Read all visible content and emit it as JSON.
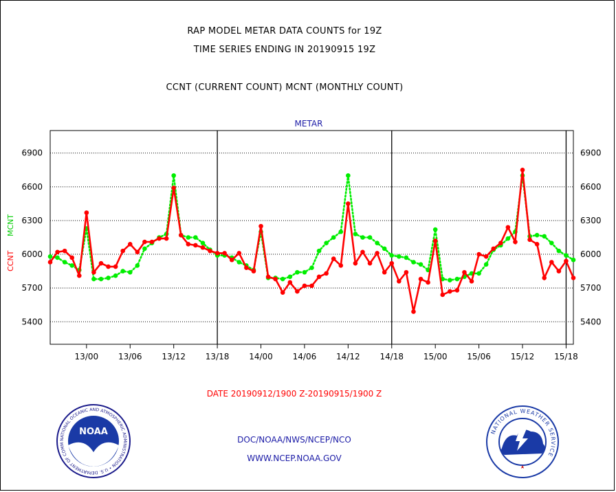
{
  "header": {
    "title_line1": "RAP MODEL METAR DATA COUNTS for 19Z",
    "title_line2": "TIME SERIES ENDING IN 20190915 19Z",
    "title_line3": "CCNT (CURRENT COUNT) MCNT (MONTHLY COUNT)"
  },
  "footer": {
    "date_range": "DATE 20190912/1900 Z-20190915/1900 Z",
    "credit_line1": "DOC/NOAA/NWS/NCEP/NCO",
    "credit_line2": "WWW.NCEP.NOAA.GOV"
  },
  "logos": {
    "noaa_text": "NOAA",
    "noaa_ring_text": "NATIONAL OCEANIC AND ATMOSPHERIC ADMINISTRATION • U.S. DEPARTMENT OF COMMERCE •",
    "nws_ring_text": "NATIONAL WEATHER SERVICE"
  },
  "chart_data": {
    "type": "line",
    "title": "METAR",
    "ylabel_ccnt": "CCNT",
    "ylabel_mcnt": "MCNT",
    "ylim": [
      5200,
      7100
    ],
    "y_ticks": [
      5400,
      5700,
      6000,
      6300,
      6600,
      6900
    ],
    "y_tick_labels": [
      "5400",
      "5700",
      "6000",
      "6300",
      "6600",
      "6900"
    ],
    "x_range_hours": [
      19,
      91
    ],
    "x_ticks": [
      {
        "hour": 24,
        "label": "13/00"
      },
      {
        "hour": 30,
        "label": "13/06"
      },
      {
        "hour": 36,
        "label": "13/12"
      },
      {
        "hour": 42,
        "label": "13/18"
      },
      {
        "hour": 48,
        "label": "14/00"
      },
      {
        "hour": 54,
        "label": "14/06"
      },
      {
        "hour": 60,
        "label": "14/12"
      },
      {
        "hour": 66,
        "label": "14/18"
      },
      {
        "hour": 72,
        "label": "15/00"
      },
      {
        "hour": 78,
        "label": "15/06"
      },
      {
        "hour": 84,
        "label": "15/12"
      },
      {
        "hour": 90,
        "label": "15/18"
      }
    ],
    "day_dividers_hours": [
      42,
      66,
      90
    ],
    "grid": true,
    "series": [
      {
        "name": "CCNT",
        "color": "#ff0000",
        "style": "solid",
        "x": [
          19,
          20,
          21,
          22,
          23,
          24,
          25,
          26,
          27,
          28,
          29,
          30,
          31,
          32,
          33,
          34,
          35,
          36,
          37,
          38,
          39,
          40,
          41,
          42,
          43,
          44,
          45,
          46,
          47,
          48,
          49,
          50,
          51,
          52,
          53,
          54,
          55,
          56,
          57,
          58,
          59,
          60,
          61,
          62,
          63,
          64,
          65,
          66,
          67,
          68,
          69,
          70,
          71,
          72,
          73,
          74,
          75,
          76,
          77,
          78,
          79,
          80,
          81,
          82,
          83,
          84,
          85,
          86,
          87,
          88,
          89,
          90,
          91
        ],
        "values": [
          5930,
          6020,
          6030,
          5970,
          5810,
          6370,
          5840,
          5920,
          5890,
          5890,
          6030,
          6090,
          6020,
          6110,
          6110,
          6140,
          6140,
          6590,
          6170,
          6090,
          6080,
          6060,
          6030,
          6010,
          6010,
          5950,
          6010,
          5880,
          5850,
          6250,
          5800,
          5780,
          5660,
          5750,
          5670,
          5720,
          5720,
          5800,
          5830,
          5960,
          5900,
          6450,
          5920,
          6020,
          5920,
          6010,
          5840,
          5920,
          5760,
          5840,
          5490,
          5780,
          5750,
          6120,
          5640,
          5670,
          5680,
          5840,
          5760,
          6000,
          5980,
          6050,
          6100,
          6240,
          6110,
          6750,
          6130,
          6090,
          5790,
          5930,
          5850,
          5940,
          5790
        ]
      },
      {
        "name": "MCNT",
        "color": "#00ee00",
        "style": "dotted",
        "x": [
          19,
          20,
          21,
          22,
          23,
          24,
          25,
          26,
          27,
          28,
          29,
          30,
          31,
          32,
          33,
          34,
          35,
          36,
          37,
          38,
          39,
          40,
          41,
          42,
          43,
          44,
          45,
          46,
          47,
          48,
          49,
          50,
          51,
          52,
          53,
          54,
          55,
          56,
          57,
          58,
          59,
          60,
          61,
          62,
          63,
          64,
          65,
          66,
          67,
          68,
          69,
          70,
          71,
          72,
          73,
          74,
          75,
          76,
          77,
          78,
          79,
          80,
          81,
          82,
          83,
          84,
          85,
          86,
          87,
          88,
          89,
          90,
          91
        ],
        "values": [
          5980,
          5970,
          5930,
          5900,
          5860,
          6230,
          5780,
          5780,
          5790,
          5810,
          5850,
          5840,
          5900,
          6050,
          6100,
          6150,
          6180,
          6700,
          6170,
          6150,
          6150,
          6100,
          6040,
          5990,
          5990,
          5970,
          5930,
          5900,
          5860,
          6200,
          5790,
          5790,
          5780,
          5800,
          5840,
          5840,
          5880,
          6030,
          6100,
          6150,
          6200,
          6700,
          6180,
          6150,
          6150,
          6100,
          6050,
          5990,
          5980,
          5970,
          5930,
          5910,
          5860,
          6220,
          5780,
          5770,
          5780,
          5800,
          5830,
          5830,
          5910,
          6040,
          6080,
          6140,
          6200,
          6700,
          6160,
          6170,
          6160,
          6100,
          6030,
          5990,
          5950
        ]
      }
    ]
  }
}
